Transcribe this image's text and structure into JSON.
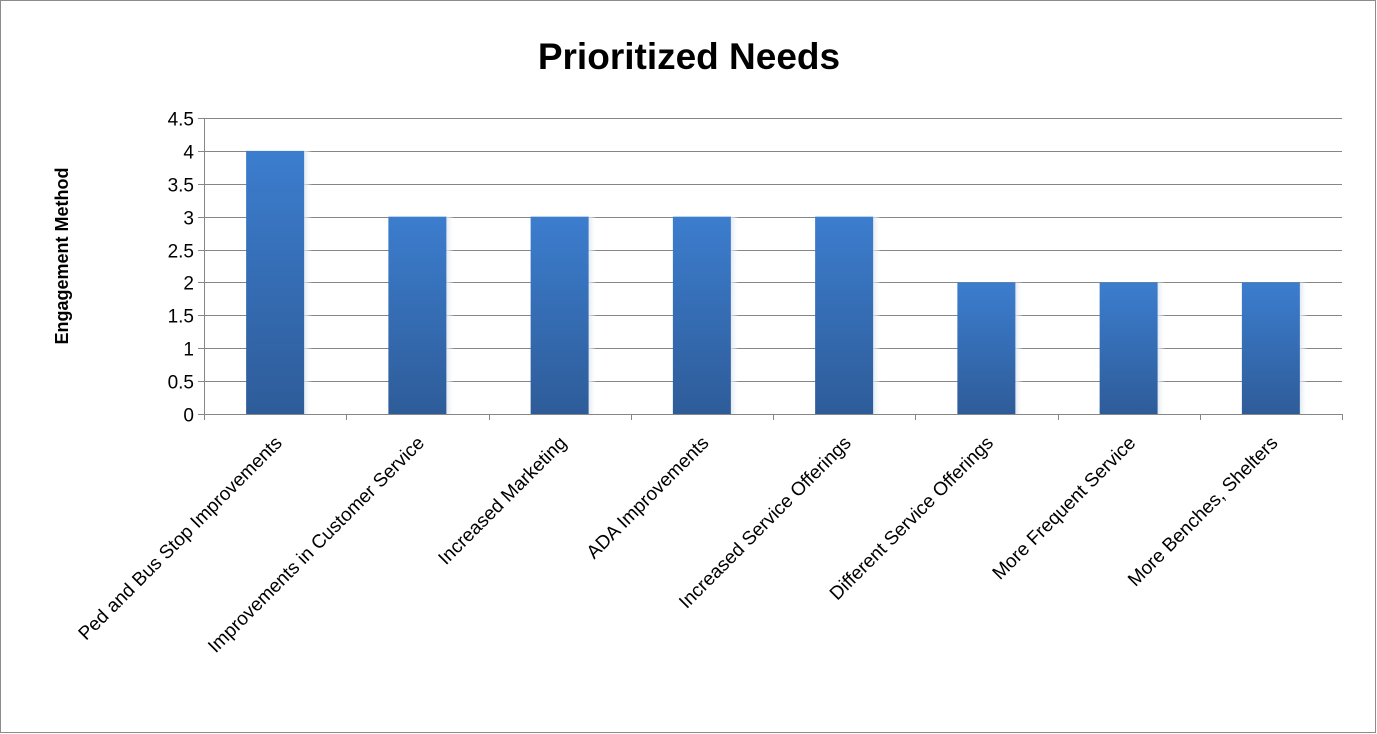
{
  "chart_data": {
    "type": "bar",
    "title": "Prioritized Needs",
    "xlabel": "",
    "ylabel": "Engagement Method",
    "categories": [
      "Ped and Bus Stop Improvements",
      "Improvements in Customer Service",
      "Increased Marketing",
      "ADA Improvements",
      "Increased Service Offerings",
      "Different Service Offerings",
      "More Frequent Service",
      "More Benches, Shelters"
    ],
    "values": [
      4,
      3,
      3,
      3,
      3,
      2,
      2,
      2
    ],
    "ylim": [
      0,
      4.5
    ],
    "yticks": [
      "0",
      "0.5",
      "1",
      "1.5",
      "2",
      "2.5",
      "3",
      "3.5",
      "4",
      "4.5"
    ],
    "grid": true,
    "legend": "none",
    "bar_color_top": "#3c7dce",
    "bar_color_bottom": "#2e5c99"
  }
}
